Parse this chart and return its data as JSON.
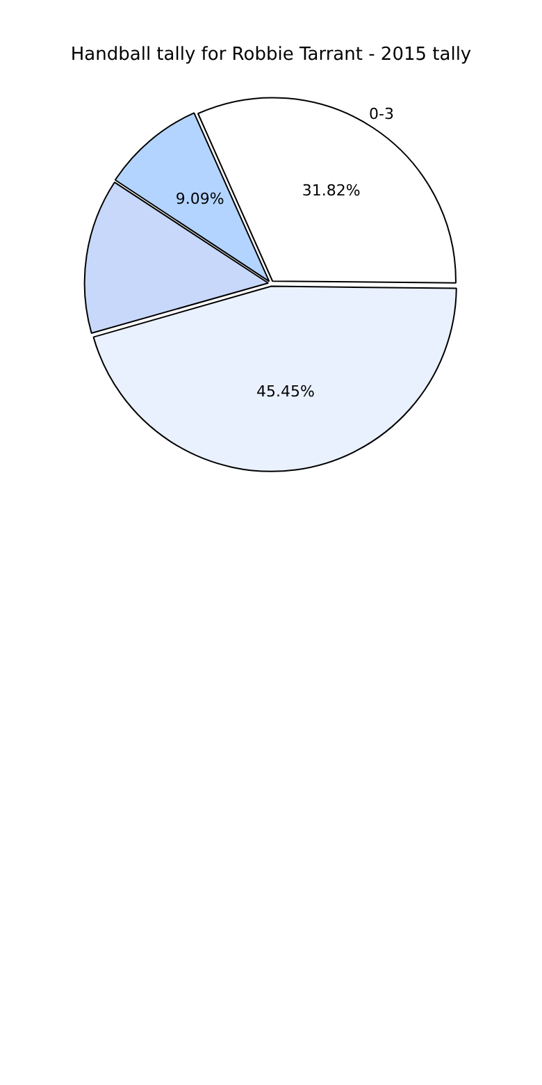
{
  "chart_data": {
    "type": "pie",
    "title": "Handball tally for Robbie Tarrant - 2015 tally",
    "categories": [
      "0-3",
      null,
      null,
      null
    ],
    "values": [
      31.82,
      45.45,
      13.64,
      9.09
    ],
    "value_labels": [
      "31.82%",
      "45.45%",
      null,
      "9.09%"
    ],
    "colors": [
      "#ffffff",
      "#eaf1fe",
      "#c8d8fa",
      "#b3d4ff"
    ],
    "legend": false
  }
}
